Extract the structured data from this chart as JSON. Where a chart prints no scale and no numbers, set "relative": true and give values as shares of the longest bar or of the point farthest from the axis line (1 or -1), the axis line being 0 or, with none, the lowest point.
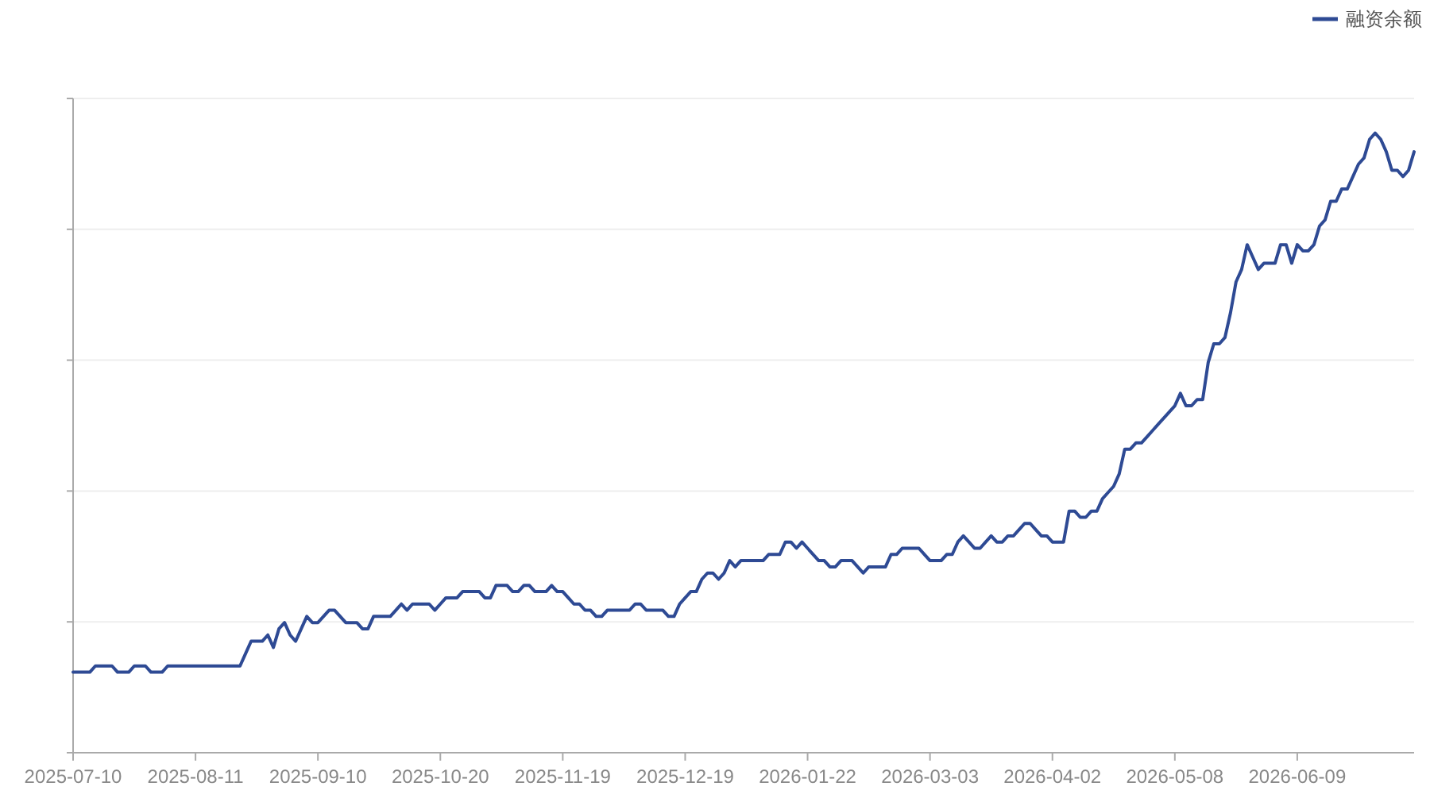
{
  "chart_data": {
    "type": "line",
    "relative": true,
    "categories": [
      "2025-07-10",
      null,
      null,
      null,
      null,
      null,
      null,
      null,
      null,
      null,
      null,
      null,
      null,
      null,
      null,
      null,
      null,
      null,
      null,
      null,
      null,
      null,
      "2025-08-11",
      null,
      null,
      null,
      null,
      null,
      null,
      null,
      null,
      null,
      null,
      null,
      null,
      null,
      null,
      null,
      null,
      null,
      null,
      null,
      null,
      null,
      "2025-09-10",
      null,
      null,
      null,
      null,
      null,
      null,
      null,
      null,
      null,
      null,
      null,
      null,
      null,
      null,
      null,
      null,
      null,
      null,
      null,
      null,
      null,
      "2025-10-20",
      null,
      null,
      null,
      null,
      null,
      null,
      null,
      null,
      null,
      null,
      null,
      null,
      null,
      null,
      null,
      null,
      null,
      null,
      null,
      null,
      null,
      "2025-11-19",
      null,
      null,
      null,
      null,
      null,
      null,
      null,
      null,
      null,
      null,
      null,
      null,
      null,
      null,
      null,
      null,
      null,
      null,
      null,
      null,
      null,
      "2025-12-19",
      null,
      null,
      null,
      null,
      null,
      null,
      null,
      null,
      null,
      null,
      null,
      null,
      null,
      null,
      null,
      null,
      null,
      null,
      null,
      null,
      null,
      "2026-01-22",
      null,
      null,
      null,
      null,
      null,
      null,
      null,
      null,
      null,
      null,
      null,
      null,
      null,
      null,
      null,
      null,
      null,
      null,
      null,
      null,
      null,
      "2026-03-03",
      null,
      null,
      null,
      null,
      null,
      null,
      null,
      null,
      null,
      null,
      null,
      null,
      null,
      null,
      null,
      null,
      null,
      null,
      null,
      null,
      null,
      "2026-04-02",
      null,
      null,
      null,
      null,
      null,
      null,
      null,
      null,
      null,
      null,
      null,
      null,
      null,
      null,
      null,
      null,
      null,
      null,
      null,
      null,
      null,
      "2026-05-08",
      null,
      null,
      null,
      null,
      null,
      null,
      null,
      null,
      null,
      null,
      null,
      null,
      null,
      null,
      null,
      null,
      null,
      null,
      null,
      null,
      null,
      "2026-06-09",
      null,
      null,
      null,
      null,
      null,
      null,
      null,
      null,
      null,
      null,
      null,
      null,
      null,
      null,
      null,
      null,
      null,
      null,
      null,
      null,
      null
    ],
    "series": [
      {
        "name": "融资余额",
        "color": "#2e4a94",
        "values": [
          0.13,
          0.13,
          0.13,
          0.13,
          0.14,
          0.14,
          0.14,
          0.14,
          0.13,
          0.13,
          0.13,
          0.14,
          0.14,
          0.14,
          0.13,
          0.13,
          0.13,
          0.14,
          0.14,
          0.14,
          0.14,
          0.14,
          0.14,
          0.14,
          0.14,
          0.14,
          0.14,
          0.14,
          0.14,
          0.14,
          0.14,
          0.16,
          0.18,
          0.18,
          0.18,
          0.19,
          0.17,
          0.2,
          0.21,
          0.19,
          0.18,
          0.2,
          0.22,
          0.21,
          0.21,
          0.22,
          0.23,
          0.23,
          0.22,
          0.21,
          0.21,
          0.21,
          0.2,
          0.2,
          0.22,
          0.22,
          0.22,
          0.22,
          0.23,
          0.24,
          0.23,
          0.24,
          0.24,
          0.24,
          0.24,
          0.23,
          0.24,
          0.25,
          0.25,
          0.25,
          0.26,
          0.26,
          0.26,
          0.26,
          0.25,
          0.25,
          0.27,
          0.27,
          0.27,
          0.26,
          0.26,
          0.27,
          0.27,
          0.26,
          0.26,
          0.26,
          0.27,
          0.26,
          0.26,
          0.25,
          0.24,
          0.24,
          0.23,
          0.23,
          0.22,
          0.22,
          0.23,
          0.23,
          0.23,
          0.23,
          0.23,
          0.24,
          0.24,
          0.23,
          0.23,
          0.23,
          0.23,
          0.22,
          0.22,
          0.24,
          0.25,
          0.26,
          0.26,
          0.28,
          0.29,
          0.29,
          0.28,
          0.29,
          0.31,
          0.3,
          0.31,
          0.31,
          0.31,
          0.31,
          0.31,
          0.32,
          0.32,
          0.32,
          0.34,
          0.34,
          0.33,
          0.34,
          0.33,
          0.32,
          0.31,
          0.31,
          0.3,
          0.3,
          0.31,
          0.31,
          0.31,
          0.3,
          0.29,
          0.3,
          0.3,
          0.3,
          0.3,
          0.32,
          0.32,
          0.33,
          0.33,
          0.33,
          0.33,
          0.32,
          0.31,
          0.31,
          0.31,
          0.32,
          0.32,
          0.34,
          0.35,
          0.34,
          0.33,
          0.33,
          0.34,
          0.35,
          0.34,
          0.34,
          0.35,
          0.35,
          0.36,
          0.37,
          0.37,
          0.36,
          0.35,
          0.35,
          0.34,
          0.34,
          0.34,
          0.39,
          0.39,
          0.38,
          0.38,
          0.39,
          0.39,
          0.41,
          0.42,
          0.43,
          0.45,
          0.49,
          0.49,
          0.5,
          0.5,
          0.51,
          0.52,
          0.53,
          0.54,
          0.55,
          0.56,
          0.58,
          0.56,
          0.56,
          0.57,
          0.57,
          0.63,
          0.66,
          0.66,
          0.67,
          0.71,
          0.76,
          0.78,
          0.82,
          0.8,
          0.78,
          0.79,
          0.79,
          0.79,
          0.82,
          0.82,
          0.79,
          0.82,
          0.81,
          0.81,
          0.82,
          0.85,
          0.86,
          0.89,
          0.89,
          0.91,
          0.91,
          0.93,
          0.95,
          0.96,
          0.99,
          1.0,
          0.99,
          0.97,
          0.94,
          0.94,
          0.93,
          0.94,
          0.97
        ]
      }
    ],
    "grid": "y",
    "legend": "top right"
  }
}
